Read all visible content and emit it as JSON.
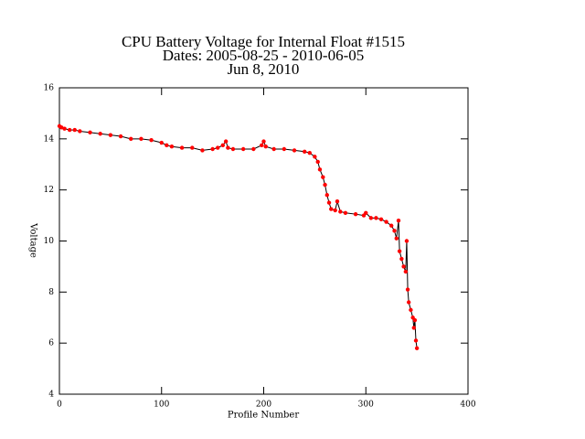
{
  "chart_data": {
    "type": "line",
    "title": "CPU Battery Voltage for Internal Float #1515",
    "subtitle": "Dates:  2005-08-25 -  2010-06-05",
    "date": "Jun  8, 2010",
    "x_label": "Profile Number",
    "y_label": "Voltage",
    "x": [
      0,
      2,
      5,
      10,
      15,
      20,
      30,
      40,
      50,
      60,
      70,
      80,
      90,
      100,
      105,
      110,
      120,
      130,
      140,
      150,
      155,
      160,
      163,
      165,
      170,
      180,
      190,
      198,
      200,
      202,
      210,
      220,
      230,
      240,
      245,
      250,
      253,
      255,
      258,
      260,
      262,
      264,
      266,
      270,
      272,
      275,
      280,
      290,
      298,
      300,
      305,
      310,
      315,
      320,
      325,
      328,
      330,
      332,
      333,
      335,
      337,
      339,
      340,
      341,
      342,
      344,
      346,
      347,
      348,
      349,
      350
    ],
    "series": [
      {
        "name": "Voltage",
        "color": "#ff0000",
        "line_color": "#000000",
        "values": [
          14.5,
          14.45,
          14.4,
          14.35,
          14.35,
          14.3,
          14.25,
          14.2,
          14.15,
          14.1,
          14.0,
          14.0,
          13.95,
          13.85,
          13.75,
          13.7,
          13.65,
          13.65,
          13.55,
          13.6,
          13.65,
          13.75,
          13.9,
          13.65,
          13.6,
          13.6,
          13.6,
          13.75,
          13.9,
          13.7,
          13.6,
          13.6,
          13.55,
          13.5,
          13.45,
          13.3,
          13.1,
          12.8,
          12.5,
          12.2,
          11.8,
          11.5,
          11.25,
          11.2,
          11.55,
          11.15,
          11.1,
          11.05,
          11.0,
          11.1,
          10.9,
          10.9,
          10.85,
          10.75,
          10.6,
          10.4,
          10.1,
          10.8,
          9.6,
          9.3,
          9.0,
          8.8,
          10.0,
          8.1,
          7.6,
          7.3,
          7.0,
          6.6,
          6.9,
          6.1,
          5.8
        ]
      }
    ],
    "xlim": [
      0,
      400
    ],
    "xticks": [
      0,
      100,
      200,
      300,
      400
    ],
    "ylim": [
      4,
      16
    ],
    "yticks": [
      4,
      6,
      8,
      10,
      12,
      14,
      16
    ]
  }
}
